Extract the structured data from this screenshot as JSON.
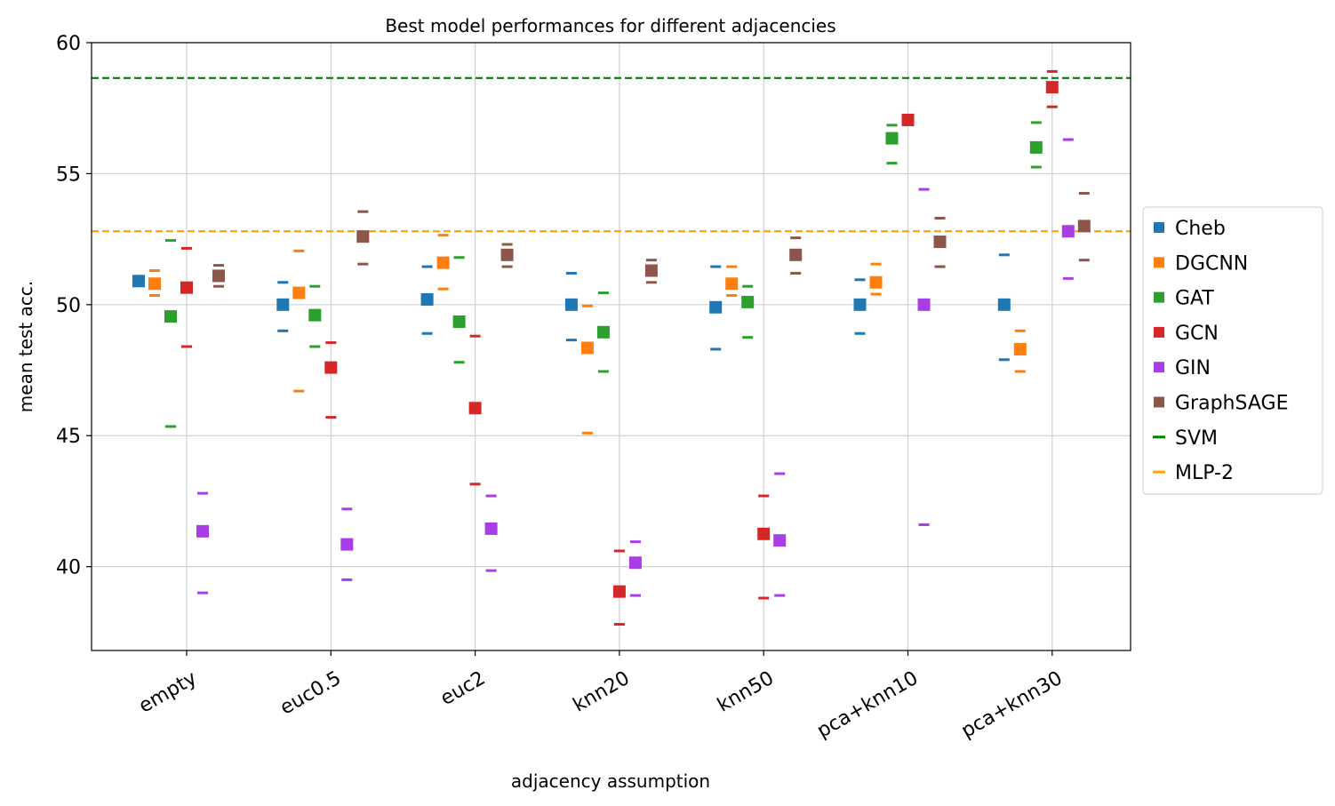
{
  "chart_data": {
    "type": "scatter",
    "title": "Best model performances for different adjacencies",
    "xlabel": "adjacency assumption",
    "ylabel": "mean test acc.",
    "ylim": [
      36.8,
      60
    ],
    "yticks": [
      40,
      45,
      50,
      55,
      60
    ],
    "categories": [
      "empty",
      "euc0.5",
      "euc2",
      "knn20",
      "knn50",
      "pca+knn10",
      "pca+knn30"
    ],
    "grid": true,
    "legend_position": "right",
    "series": [
      {
        "name": "Cheb",
        "color": "#1f77b4",
        "values": [
          50.9,
          50.0,
          50.2,
          50.0,
          49.9,
          50.0,
          50.0
        ],
        "upper": [
          null,
          50.85,
          51.45,
          51.2,
          51.45,
          50.95,
          51.9
        ],
        "lower": [
          null,
          49.0,
          48.9,
          48.65,
          48.3,
          48.9,
          47.9
        ]
      },
      {
        "name": "DGCNN",
        "color": "#ff7f0e",
        "values": [
          50.8,
          50.45,
          51.6,
          48.35,
          50.8,
          50.85,
          48.3
        ],
        "upper": [
          51.3,
          52.05,
          52.65,
          49.95,
          51.45,
          51.55,
          49.0
        ],
        "lower": [
          50.35,
          46.7,
          50.6,
          45.1,
          50.35,
          50.4,
          47.45
        ]
      },
      {
        "name": "GAT",
        "color": "#2ca02c",
        "values": [
          49.55,
          49.6,
          49.35,
          48.95,
          50.1,
          56.35,
          56.0
        ],
        "upper": [
          52.45,
          50.7,
          51.8,
          50.45,
          50.7,
          56.85,
          56.95
        ],
        "lower": [
          45.35,
          48.4,
          47.8,
          47.45,
          48.75,
          55.4,
          55.25
        ]
      },
      {
        "name": "GCN",
        "color": "#d62728",
        "values": [
          50.65,
          47.6,
          46.05,
          39.05,
          41.25,
          57.05,
          58.3
        ],
        "upper": [
          52.15,
          48.55,
          48.8,
          40.6,
          42.7,
          null,
          58.9
        ],
        "lower": [
          48.4,
          45.7,
          43.15,
          37.8,
          38.8,
          null,
          57.55
        ]
      },
      {
        "name": "GIN",
        "color": "#a83ee8",
        "values": [
          41.35,
          40.85,
          41.45,
          40.15,
          41.0,
          50.0,
          52.8
        ],
        "upper": [
          42.8,
          42.2,
          42.7,
          40.95,
          43.55,
          54.4,
          56.3
        ],
        "lower": [
          39.0,
          39.5,
          39.85,
          38.9,
          38.9,
          41.6,
          51.0
        ]
      },
      {
        "name": "GraphSAGE",
        "color": "#8c564b",
        "values": [
          51.1,
          52.6,
          51.9,
          51.3,
          51.9,
          52.4,
          53.0
        ],
        "upper": [
          51.5,
          53.55,
          52.3,
          51.7,
          52.55,
          53.3,
          54.25
        ],
        "lower": [
          50.7,
          51.55,
          51.45,
          50.85,
          51.2,
          51.45,
          51.7
        ]
      }
    ],
    "reference_lines": [
      {
        "name": "SVM",
        "value": 58.65,
        "color": "#008000"
      },
      {
        "name": "MLP-2",
        "value": 52.8,
        "color": "#ffa500"
      }
    ],
    "legend": [
      "Cheb",
      "DGCNN",
      "GAT",
      "GCN",
      "GIN",
      "GraphSAGE",
      "SVM",
      "MLP-2"
    ]
  }
}
